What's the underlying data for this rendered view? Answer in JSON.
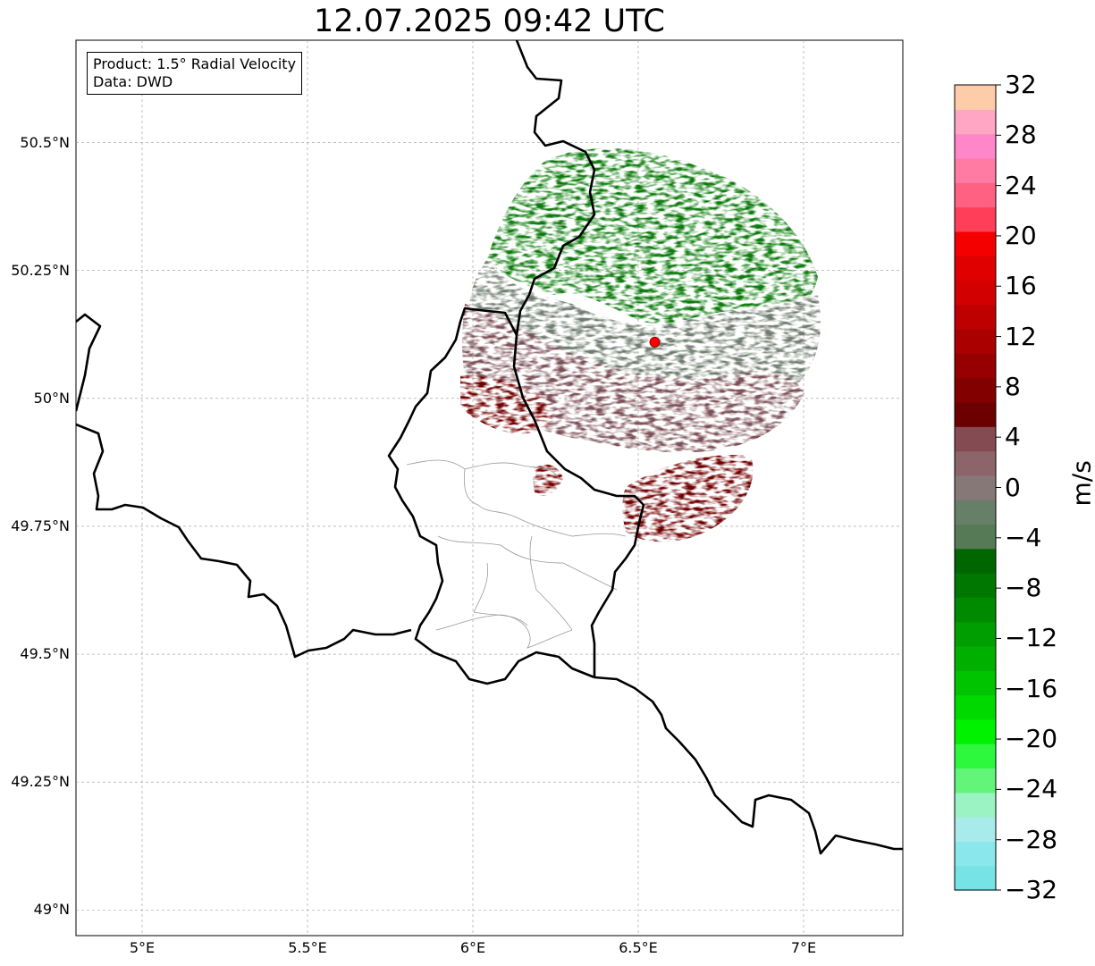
{
  "title": "12.07.2025 09:42 UTC",
  "info": {
    "product": "Product: 1.5° Radial Velocity",
    "data": "Data: DWD"
  },
  "map": {
    "lon_range": [
      4.8,
      7.3
    ],
    "lat_range": [
      48.95,
      50.7
    ],
    "lon_ticks": [
      "5°E",
      "5.5°E",
      "6°E",
      "6.5°E",
      "7°E"
    ],
    "lat_ticks": [
      "50.5°N",
      "50.25°N",
      "50°N",
      "49.75°N",
      "49.5°N",
      "49.25°N",
      "49°N"
    ],
    "radar_site": {
      "lon": 6.55,
      "lat": 50.11
    },
    "gridlines": true
  },
  "colorbar": {
    "label": "m/s",
    "min": -32,
    "max": 32,
    "ticks": [
      "32",
      "28",
      "24",
      "20",
      "16",
      "12",
      "8",
      "4",
      "0",
      "−4",
      "−8",
      "−12",
      "−16",
      "−20",
      "−24",
      "−28",
      "−32"
    ],
    "colors": [
      "#76E3E6",
      "#8AE8EC",
      "#A8EBEA",
      "#9BF2C3",
      "#62F57A",
      "#2EF83E",
      "#00F200",
      "#00D900",
      "#00C400",
      "#00B000",
      "#009E00",
      "#008A00",
      "#007800",
      "#006600",
      "#567A56",
      "#677F67",
      "#877878",
      "#8C6469",
      "#844B52",
      "#6C0000",
      "#820000",
      "#960000",
      "#AA0000",
      "#BE0000",
      "#D30000",
      "#E00000",
      "#F50000",
      "#FF3F5A",
      "#FF6182",
      "#FF7BA4",
      "#FF87C9",
      "#FFA6C5",
      "#FFCCAA"
    ]
  }
}
